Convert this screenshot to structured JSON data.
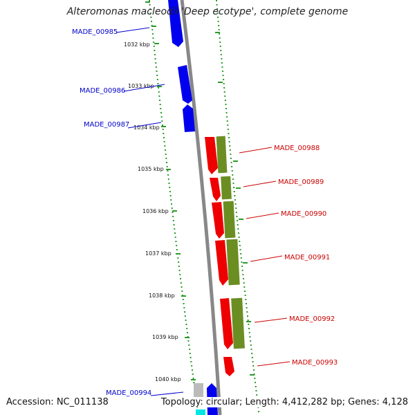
{
  "title": "Alteromonas macleodii 'Deep ecotype', complete genome",
  "footer": {
    "accession": "Accession: NC_011138",
    "summary": "Topology: circular; Length: 4,412,282 bp; Genes: 4,128"
  },
  "colors": {
    "backbone": "#888888",
    "gc_ticks": "#2a9a2a",
    "label_blue": "#0000cc",
    "label_red": "#cc0000",
    "feature_blue": "#0000ee",
    "feature_red": "#ee0000",
    "feature_olive": "#6b8e23",
    "feature_gray": "#bbbbbb",
    "feature_cyan": "#00e5e5"
  },
  "ticks": [
    {
      "label": "1032 kbp"
    },
    {
      "label": "1033 kbp"
    },
    {
      "label": "1034 kbp"
    },
    {
      "label": "1035 kbp"
    },
    {
      "label": "1036 kbp"
    },
    {
      "label": "1037 kbp"
    },
    {
      "label": "1038 kbp"
    },
    {
      "label": "1039 kbp"
    },
    {
      "label": "1040 kbp"
    }
  ],
  "genes": [
    {
      "label": "MADE_00985",
      "color": "blue"
    },
    {
      "label": "MADE_00986",
      "color": "blue"
    },
    {
      "label": "MADE_00987",
      "color": "blue"
    },
    {
      "label": "MADE_00988",
      "color": "red"
    },
    {
      "label": "MADE_00989",
      "color": "red"
    },
    {
      "label": "MADE_00990",
      "color": "red"
    },
    {
      "label": "MADE_00991",
      "color": "red"
    },
    {
      "label": "MADE_00992",
      "color": "red"
    },
    {
      "label": "MADE_00993",
      "color": "red"
    },
    {
      "label": "MADE_00994",
      "color": "blue"
    }
  ]
}
